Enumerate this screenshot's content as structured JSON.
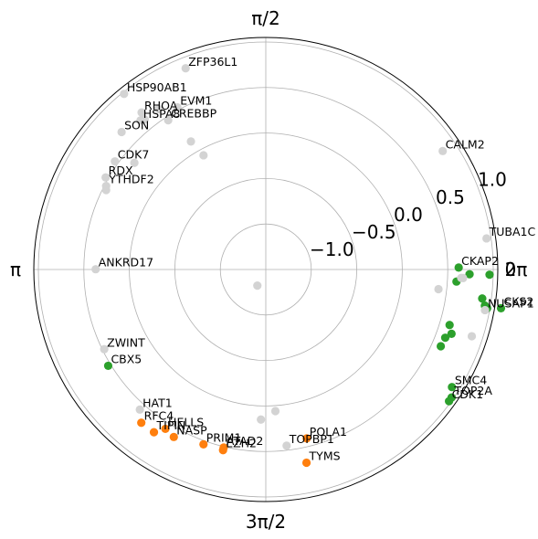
{
  "chart_data": {
    "type": "scatter",
    "projection": "polar",
    "title": "",
    "angle_ticks": [
      {
        "angle": 0,
        "label": "0"
      },
      {
        "angle": 6.2832,
        "label": "2π"
      },
      {
        "angle": 1.5708,
        "label": "π/2"
      },
      {
        "angle": 3.1416,
        "label": "π"
      },
      {
        "angle": 4.7124,
        "label": "3π/2"
      }
    ],
    "r_ticks": [
      {
        "value": -1.0,
        "label": "−1.0"
      },
      {
        "value": -0.5,
        "label": "−0.5"
      },
      {
        "value": 0.0,
        "label": "0.0"
      },
      {
        "value": 0.5,
        "label": "0.5"
      },
      {
        "value": 1.0,
        "label": "1.0"
      }
    ],
    "r_range": [
      -1.5,
      1.05
    ],
    "r_label_angle_deg": 22.5,
    "colors": {
      "grey": "#d3d3d3",
      "green": "#2ca02c",
      "orange": "#ff7f0e"
    },
    "points": [
      {
        "theta": 0.59,
        "r": 0.84,
        "color": "grey",
        "label": "CALM2"
      },
      {
        "theta": 0.14,
        "r": 0.95,
        "color": "grey",
        "label": "TUBA1C"
      },
      {
        "theta": 0.01,
        "r": 0.62,
        "color": "green",
        "label": "CKAP2"
      },
      {
        "theta": 6.26,
        "r": 0.96,
        "color": "green",
        "label": ""
      },
      {
        "theta": 6.26,
        "r": 0.74,
        "color": "green",
        "label": ""
      },
      {
        "theta": 6.24,
        "r": 0.67,
        "color": "grey",
        "label": ""
      },
      {
        "theta": 6.22,
        "r": 0.6,
        "color": "green",
        "label": ""
      },
      {
        "theta": 6.17,
        "r": 0.41,
        "color": "grey",
        "label": ""
      },
      {
        "theta": 6.24,
        "r": 0.65,
        "color": "grey",
        "label": ""
      },
      {
        "theta": 6.12,
        "r": 1.12,
        "color": "green",
        "label": "CKS2"
      },
      {
        "theta": 6.15,
        "r": 0.9,
        "color": "green",
        "label": ""
      },
      {
        "theta": 6.11,
        "r": 0.97,
        "color": "green",
        "label": ""
      },
      {
        "theta": 6.12,
        "r": 0.94,
        "color": "green",
        "label": ""
      },
      {
        "theta": 6.1,
        "r": 0.95,
        "color": "grey",
        "label": "NUSAP1"
      },
      {
        "theta": 5.97,
        "r": 0.88,
        "color": "grey",
        "label": ""
      },
      {
        "theta": 5.99,
        "r": 0.61,
        "color": "green",
        "label": ""
      },
      {
        "theta": 5.95,
        "r": 0.66,
        "color": "green",
        "label": ""
      },
      {
        "theta": 5.92,
        "r": 0.61,
        "color": "green",
        "label": ""
      },
      {
        "theta": 5.87,
        "r": 0.6,
        "color": "green",
        "label": ""
      },
      {
        "theta": 5.72,
        "r": 0.92,
        "color": "green",
        "label": "SMC4"
      },
      {
        "theta": 5.68,
        "r": 0.98,
        "color": "green",
        "label": "TOP2A"
      },
      {
        "theta": 5.66,
        "r": 0.98,
        "color": "green",
        "label": "CDK1"
      },
      {
        "theta": 4.92,
        "r": 0.67,
        "color": "orange",
        "label": "TYMS"
      },
      {
        "theta": 4.78,
        "r": 0.06,
        "color": "grey",
        "label": ""
      },
      {
        "theta": 4.95,
        "r": 0.41,
        "color": "orange",
        "label": "POLA1"
      },
      {
        "theta": 4.68,
        "r": 0.15,
        "color": "grey",
        "label": ""
      },
      {
        "theta": 4.83,
        "r": 0.45,
        "color": "grey",
        "label": "TOPBP1"
      },
      {
        "theta": 4.48,
        "r": 0.51,
        "color": "orange",
        "label": "ATAD2"
      },
      {
        "theta": 4.48,
        "r": 0.54,
        "color": "orange",
        "label": "EZH2"
      },
      {
        "theta": 4.37,
        "r": 0.54,
        "color": "orange",
        "label": "PRIM1"
      },
      {
        "theta": 4.21,
        "r": 0.6,
        "color": "orange",
        "label": "NASP"
      },
      {
        "theta": 4.15,
        "r": 0.57,
        "color": "orange",
        "label": "HELLS"
      },
      {
        "theta": 4.11,
        "r": 0.67,
        "color": "orange",
        "label": "TIPIN"
      },
      {
        "theta": 4.03,
        "r": 0.67,
        "color": "orange",
        "label": "RFC4"
      },
      {
        "theta": 3.98,
        "r": 0.57,
        "color": "grey",
        "label": "HAT1"
      },
      {
        "theta": 3.69,
        "r": 0.53,
        "color": "green",
        "label": "CBX5"
      },
      {
        "theta": 3.6,
        "r": 0.48,
        "color": "grey",
        "label": "ZWINT"
      },
      {
        "theta": 3.14,
        "r": 0.37,
        "color": "grey",
        "label": "ANKRD17"
      },
      {
        "theta": 2.62,
        "r": 0.53,
        "color": "grey",
        "label": "RDX"
      },
      {
        "theta": 2.66,
        "r": 0.48,
        "color": "grey",
        "label": "YTHDF2"
      },
      {
        "theta": 2.68,
        "r": 0.46,
        "color": "grey",
        "label": ""
      },
      {
        "theta": 2.52,
        "r": 0.54,
        "color": "grey",
        "label": "CDK7"
      },
      {
        "theta": 2.46,
        "r": 0.36,
        "color": "grey",
        "label": ""
      },
      {
        "theta": 2.15,
        "r": 0.46,
        "color": "grey",
        "label": "CREBBP"
      },
      {
        "theta": 2.1,
        "r": 0.13,
        "color": "grey",
        "label": ""
      },
      {
        "theta": 2.07,
        "r": -0.07,
        "color": "grey",
        "label": ""
      },
      {
        "theta": 2.38,
        "r": 0.69,
        "color": "grey",
        "label": "SON"
      },
      {
        "theta": 2.27,
        "r": 0.64,
        "color": "grey",
        "label": "HSPA8"
      },
      {
        "theta": 2.24,
        "r": 0.7,
        "color": "grey",
        "label": "RHOA"
      },
      {
        "theta": 2.07,
        "r": 0.53,
        "color": "grey",
        "label": "EVM1"
      },
      {
        "theta": 2.16,
        "r": 0.62,
        "color": "grey",
        "label": ""
      },
      {
        "theta": 2.25,
        "r": 0.62,
        "color": "grey",
        "label": ""
      },
      {
        "theta": 2.25,
        "r": 0.98,
        "color": "grey",
        "label": "HSP90AB1"
      },
      {
        "theta": 1.95,
        "r": 0.88,
        "color": "grey",
        "label": "ZFP36L1"
      },
      {
        "theta": 4.23,
        "r": -1.3,
        "color": "grey",
        "label": ""
      }
    ]
  }
}
